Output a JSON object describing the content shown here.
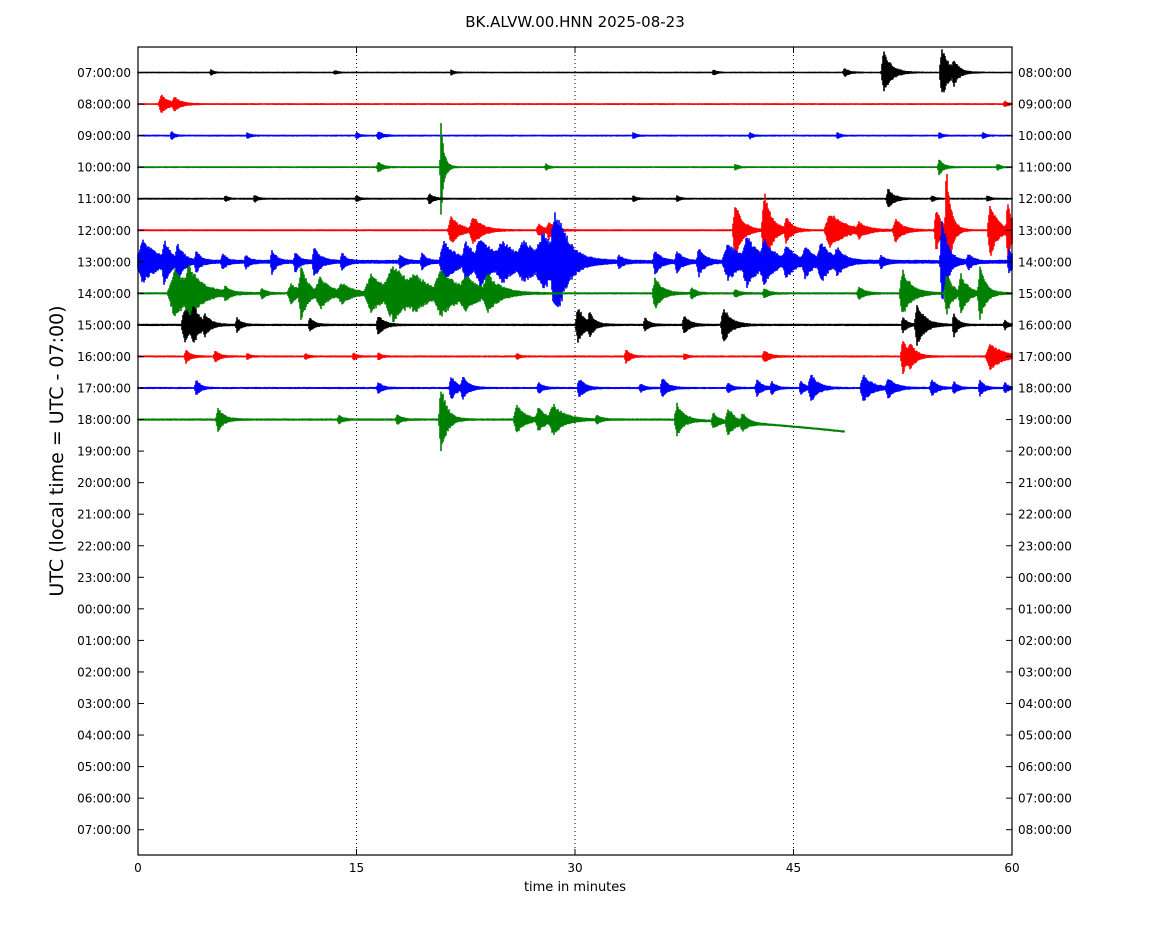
{
  "chart_data": {
    "type": "line",
    "title": "BK.ALVW.00.HNN 2025-08-23",
    "xlabel": "time in minutes",
    "ylabel": "UTC (local time = UTC - 07:00)",
    "xlim": [
      0,
      60
    ],
    "x_ticks": [
      0,
      15,
      30,
      45,
      60
    ],
    "x_tick_labels": [
      "0",
      "15",
      "30",
      "45",
      "60"
    ],
    "grid": "vertical dotted lines at x ticks",
    "left_tick_labels": [
      "07:00:00",
      "08:00:00",
      "09:00:00",
      "10:00:00",
      "11:00:00",
      "12:00:00",
      "13:00:00",
      "14:00:00",
      "15:00:00",
      "16:00:00",
      "17:00:00",
      "18:00:00",
      "19:00:00",
      "20:00:00",
      "21:00:00",
      "22:00:00",
      "23:00:00",
      "00:00:00",
      "01:00:00",
      "02:00:00",
      "03:00:00",
      "04:00:00",
      "05:00:00",
      "06:00:00",
      "07:00:00"
    ],
    "right_tick_labels": [
      "08:00:00",
      "09:00:00",
      "10:00:00",
      "11:00:00",
      "12:00:00",
      "13:00:00",
      "14:00:00",
      "15:00:00",
      "16:00:00",
      "17:00:00",
      "18:00:00",
      "19:00:00",
      "20:00:00",
      "21:00:00",
      "22:00:00",
      "23:00:00",
      "00:00:00",
      "01:00:00",
      "02:00:00",
      "03:00:00",
      "04:00:00",
      "05:00:00",
      "06:00:00",
      "07:00:00",
      "08:00:00"
    ],
    "color_cycle": [
      "#000000",
      "#ff0000",
      "#0000ff",
      "#008000"
    ],
    "traces": [
      {
        "hour": "07:00:00",
        "end_minute": 60,
        "noise": 0.9,
        "events": [
          [
            5,
            2.5,
            0.2
          ],
          [
            13.5,
            2,
            0.2
          ],
          [
            21.5,
            2.5,
            0.2
          ],
          [
            39.5,
            3,
            0.2
          ],
          [
            48.5,
            4,
            0.3
          ],
          [
            51.2,
            22,
            0.5
          ],
          [
            55.2,
            25,
            0.5
          ],
          [
            56,
            10,
            0.3
          ]
        ]
      },
      {
        "hour": "08:00:00",
        "end_minute": 60,
        "noise": 1.0,
        "events": [
          [
            1.6,
            9,
            0.5
          ],
          [
            2.5,
            6,
            0.4
          ],
          [
            59.5,
            3,
            0.2
          ]
        ]
      },
      {
        "hour": "09:00:00",
        "end_minute": 60,
        "noise": 1.0,
        "events": [
          [
            2.3,
            4,
            0.2
          ],
          [
            7.5,
            3,
            0.2
          ],
          [
            15,
            3,
            0.2
          ],
          [
            16.5,
            4,
            0.3
          ],
          [
            34,
            3,
            0.2
          ],
          [
            42,
            3,
            0.2
          ],
          [
            48,
            3,
            0.2
          ],
          [
            55,
            3,
            0.2
          ],
          [
            58,
            3,
            0.2
          ]
        ]
      },
      {
        "hour": "10:00:00",
        "end_minute": 60,
        "noise": 1.0,
        "events": [
          [
            16.5,
            5,
            0.3
          ],
          [
            20.8,
            50,
            0.2
          ],
          [
            28,
            3,
            0.2
          ],
          [
            41,
            3,
            0.2
          ],
          [
            55,
            8,
            0.3
          ],
          [
            59,
            3,
            0.2
          ]
        ]
      },
      {
        "hour": "11:00:00",
        "end_minute": 60,
        "noise": 1.0,
        "events": [
          [
            6,
            3,
            0.2
          ],
          [
            8,
            4,
            0.2
          ],
          [
            15,
            3,
            0.2
          ],
          [
            20,
            5,
            0.3
          ],
          [
            34,
            3,
            0.2
          ],
          [
            37,
            3,
            0.2
          ],
          [
            51.5,
            10,
            0.4
          ],
          [
            54.5,
            3,
            0.2
          ],
          [
            58.3,
            3,
            0.2
          ]
        ]
      },
      {
        "hour": "12:00:00",
        "end_minute": 60,
        "noise": 1.1,
        "events": [
          [
            21.5,
            14,
            0.6
          ],
          [
            23,
            14,
            0.6
          ],
          [
            27.5,
            6,
            0.4
          ],
          [
            28.2,
            8,
            0.4
          ],
          [
            41,
            28,
            0.5
          ],
          [
            43,
            40,
            0.5
          ],
          [
            44.5,
            12,
            0.4
          ],
          [
            47.5,
            18,
            1.0
          ],
          [
            49.5,
            6,
            0.5
          ],
          [
            52,
            12,
            0.5
          ],
          [
            54.8,
            22,
            0.4
          ],
          [
            55.5,
            60,
            0.3
          ],
          [
            58.5,
            28,
            0.5
          ],
          [
            59.7,
            30,
            0.3
          ]
        ]
      },
      {
        "hour": "13:00:00",
        "end_minute": 60,
        "noise": 2.0,
        "events": [
          [
            0.3,
            22,
            1.0
          ],
          [
            1.8,
            18,
            0.4
          ],
          [
            2.7,
            16,
            0.4
          ],
          [
            4,
            10,
            0.3
          ],
          [
            5.8,
            8,
            0.3
          ],
          [
            7.4,
            6,
            0.3
          ],
          [
            9.2,
            12,
            0.3
          ],
          [
            10.8,
            10,
            0.3
          ],
          [
            12.1,
            16,
            0.4
          ],
          [
            14,
            8,
            0.3
          ],
          [
            18,
            6,
            0.3
          ],
          [
            19.5,
            8,
            0.3
          ],
          [
            21,
            22,
            0.8
          ],
          [
            22.5,
            18,
            0.6
          ],
          [
            23.5,
            22,
            1.0
          ],
          [
            25,
            16,
            1.2
          ],
          [
            26.5,
            16,
            1.2
          ],
          [
            27.8,
            22,
            1.2
          ],
          [
            28.6,
            38,
            0.7
          ],
          [
            29,
            14,
            0.6
          ],
          [
            33,
            6,
            0.3
          ],
          [
            35.5,
            12,
            0.4
          ],
          [
            37,
            10,
            0.4
          ],
          [
            38.5,
            14,
            0.4
          ],
          [
            40.5,
            18,
            1.0
          ],
          [
            41.8,
            22,
            0.8
          ],
          [
            43,
            16,
            0.7
          ],
          [
            44.5,
            14,
            0.6
          ],
          [
            45.8,
            14,
            0.6
          ],
          [
            46.9,
            18,
            0.7
          ],
          [
            48,
            10,
            0.5
          ],
          [
            51,
            6,
            0.3
          ],
          [
            55.2,
            45,
            0.4
          ],
          [
            57,
            8,
            0.3
          ],
          [
            59.8,
            12,
            0.3
          ]
        ]
      },
      {
        "hour": "14:00:00",
        "end_minute": 60,
        "noise": 1.2,
        "events": [
          [
            2.5,
            24,
            1.2
          ],
          [
            3.5,
            18,
            0.8
          ],
          [
            6,
            6,
            0.3
          ],
          [
            8.5,
            5,
            0.3
          ],
          [
            10.5,
            10,
            0.6
          ],
          [
            11.2,
            24,
            0.5
          ],
          [
            12.5,
            14,
            0.8
          ],
          [
            14,
            8,
            0.8
          ],
          [
            16,
            18,
            1.2
          ],
          [
            17.5,
            24,
            1.5
          ],
          [
            19,
            10,
            1.0
          ],
          [
            20.8,
            20,
            1.2
          ],
          [
            22.5,
            12,
            1.0
          ],
          [
            24,
            16,
            0.8
          ],
          [
            35.5,
            16,
            0.5
          ],
          [
            38,
            6,
            0.3
          ],
          [
            41,
            4,
            0.3
          ],
          [
            43,
            5,
            0.3
          ],
          [
            49.5,
            6,
            0.4
          ],
          [
            52.5,
            24,
            0.6
          ],
          [
            55.5,
            22,
            0.4
          ],
          [
            56.5,
            18,
            0.5
          ],
          [
            57.8,
            26,
            0.4
          ]
        ]
      },
      {
        "hour": "15:00:00",
        "end_minute": 60,
        "noise": 1.2,
        "events": [
          [
            3.2,
            18,
            0.6
          ],
          [
            3.8,
            14,
            0.5
          ],
          [
            4.6,
            8,
            0.3
          ],
          [
            6.8,
            7,
            0.3
          ],
          [
            11.8,
            7,
            0.3
          ],
          [
            16.5,
            10,
            0.4
          ],
          [
            30.2,
            18,
            0.5
          ],
          [
            31,
            10,
            0.3
          ],
          [
            34.8,
            7,
            0.3
          ],
          [
            37.5,
            9,
            0.4
          ],
          [
            40.2,
            18,
            0.5
          ],
          [
            52.5,
            8,
            0.3
          ],
          [
            53.5,
            22,
            0.5
          ],
          [
            56,
            12,
            0.3
          ],
          [
            59.5,
            5,
            0.2
          ]
        ]
      },
      {
        "hour": "16:00:00",
        "end_minute": 60,
        "noise": 1.1,
        "events": [
          [
            3.3,
            7,
            0.3
          ],
          [
            5.3,
            6,
            0.3
          ],
          [
            7.5,
            3,
            0.2
          ],
          [
            11.5,
            3,
            0.2
          ],
          [
            14.8,
            4,
            0.2
          ],
          [
            16.5,
            4,
            0.2
          ],
          [
            26,
            3,
            0.2
          ],
          [
            33.5,
            7,
            0.3
          ],
          [
            37.5,
            3,
            0.2
          ],
          [
            43,
            6,
            0.4
          ],
          [
            52.5,
            18,
            0.4
          ],
          [
            53,
            10,
            0.4
          ],
          [
            58.5,
            14,
            0.8
          ]
        ]
      },
      {
        "hour": "17:00:00",
        "end_minute": 60,
        "noise": 1.1,
        "events": [
          [
            4,
            8,
            0.3
          ],
          [
            16.5,
            6,
            0.3
          ],
          [
            21.5,
            12,
            0.4
          ],
          [
            22.3,
            10,
            0.4
          ],
          [
            27.5,
            6,
            0.3
          ],
          [
            30.3,
            10,
            0.4
          ],
          [
            34.5,
            4,
            0.3
          ],
          [
            36,
            10,
            0.4
          ],
          [
            40.5,
            5,
            0.3
          ],
          [
            42.5,
            8,
            0.4
          ],
          [
            43.5,
            6,
            0.3
          ],
          [
            45.5,
            7,
            0.3
          ],
          [
            46.2,
            14,
            0.5
          ],
          [
            49.8,
            14,
            0.6
          ],
          [
            51.5,
            10,
            0.5
          ],
          [
            54.5,
            8,
            0.4
          ],
          [
            56,
            6,
            0.3
          ],
          [
            57.8,
            8,
            0.3
          ],
          [
            59.5,
            5,
            0.3
          ]
        ]
      },
      {
        "hour": "18:00:00",
        "end_minute": 48.5,
        "drift_start_minute": 36,
        "drift": 12,
        "noise": 1.2,
        "events": [
          [
            5.5,
            12,
            0.4
          ],
          [
            13.8,
            4,
            0.3
          ],
          [
            17.8,
            5,
            0.3
          ],
          [
            20.8,
            36,
            0.4
          ],
          [
            26,
            14,
            0.6
          ],
          [
            27.5,
            12,
            0.5
          ],
          [
            28.5,
            14,
            0.8
          ],
          [
            31.5,
            4,
            0.3
          ],
          [
            37,
            16,
            0.5
          ],
          [
            39.5,
            8,
            0.4
          ],
          [
            40.5,
            14,
            0.5
          ],
          [
            41.5,
            8,
            0.4
          ]
        ]
      }
    ]
  }
}
